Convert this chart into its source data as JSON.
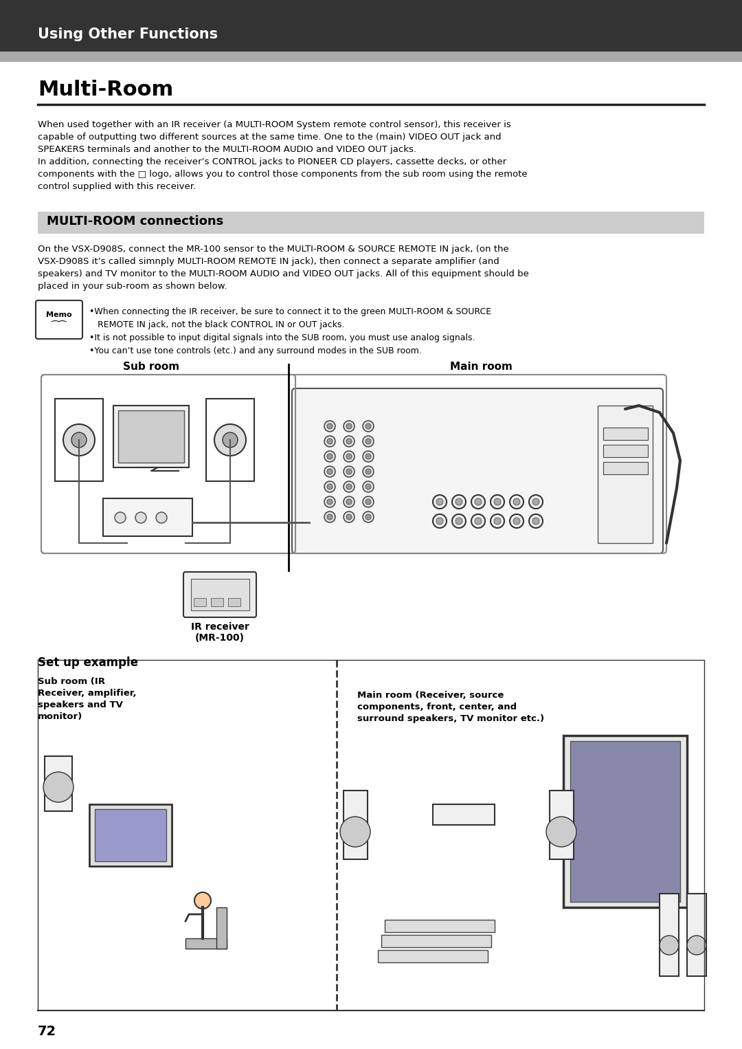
{
  "page_bg": "#ffffff",
  "header_bg": "#333333",
  "header_text": "Using Other Functions",
  "header_text_color": "#ffffff",
  "title": "Multi-Room",
  "title_color": "#000000",
  "section_bg": "#cccccc",
  "section_title": "MULTI-ROOM connections",
  "body_text_1": "When used together with an IR receiver (a MULTI-ROOM System remote control sensor), this receiver is\ncapable of outputting two different sources at the same time. One to the (main) VIDEO OUT jack and\nSPEAKERS terminals and another to the MULTI-ROOM AUDIO and VIDEO OUT jacks.\nIn addition, connecting the receiver’s CONTROL jacks to PIONEER CD players, cassette decks, or other\ncomponents with the  logo, allows you to control those components from the sub room using the remote\ncontrol supplied with this receiver.",
  "body_text_2": "On the VSX-D908S, connect the MR-100 sensor to the MULTI-ROOM & SOURCE REMOTE IN jack, (on the\nVSX-D908S it’s called simnply MULTI-ROOM REMOTE IN jack), then connect a separate amplifier (and\nspeakers) and TV monitor to the MULTI-ROOM AUDIO and VIDEO OUT jacks. All of this equipment should be\nplaced in your sub-room as shown below.",
  "memo_text": "•When connecting the IR receiver, be sure to connect it to the green MULTI-ROOM & SOURCE\n   REMOTE IN jack, not the black CONTROL IN or OUT jacks.\n•It is not possible to input digital signals into the SUB room, you must use analog signals.\n•You can’t use tone controls (etc.) and any surround modes in the SUB room.",
  "sub_room_label": "Sub room",
  "main_room_label": "Main room",
  "ir_receiver_label": "IR receiver\n(MR-100)",
  "set_up_label": "Set up example",
  "sub_room_desc": "Sub room (IR\nReceiver, amplifier,\nspeakers and TV\nmonitor)",
  "main_room_desc": "Main room (Receiver, source\ncomponents, front, center, and\nsurround speakers, TV monitor etc.)",
  "page_number": "72"
}
